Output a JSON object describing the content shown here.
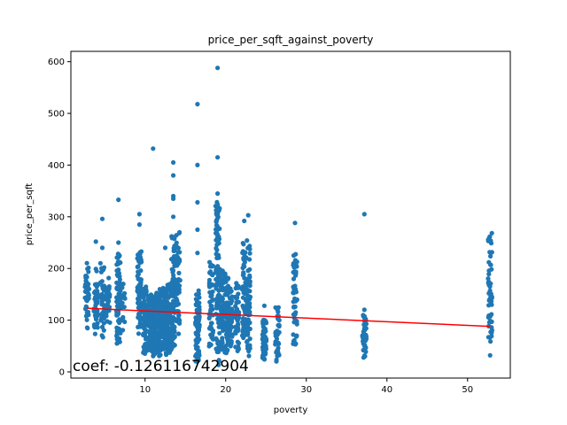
{
  "chart_data": {
    "type": "scatter",
    "title": "price_per_sqft_against_poverty",
    "xlabel": "poverty",
    "ylabel": "price_per_sqft",
    "xlim": [
      0.8,
      55.3
    ],
    "ylim": [
      -12,
      620
    ],
    "xticks": [
      10,
      20,
      30,
      40,
      50
    ],
    "yticks": [
      0,
      100,
      200,
      300,
      400,
      500,
      600
    ],
    "grid": false,
    "legend": "none",
    "point_color": "#1f77b4",
    "line_color": "#ff0000",
    "clusters": [
      {
        "x": 2.8,
        "ymin": 82,
        "ymax": 215,
        "n": 45,
        "outliers": []
      },
      {
        "x": 3.9,
        "ymin": 72,
        "ymax": 200,
        "n": 40,
        "outliers": [
          252
        ]
      },
      {
        "x": 4.7,
        "ymin": 62,
        "ymax": 215,
        "n": 40,
        "outliers": [
          296,
          240
        ]
      },
      {
        "x": 5.4,
        "ymin": 90,
        "ymax": 185,
        "n": 30,
        "outliers": []
      },
      {
        "x": 6.7,
        "ymin": 52,
        "ymax": 230,
        "n": 70,
        "outliers": [
          333,
          250
        ]
      },
      {
        "x": 7.3,
        "ymin": 80,
        "ymax": 175,
        "n": 20,
        "outliers": []
      },
      {
        "x": 9.3,
        "ymin": 72,
        "ymax": 235,
        "n": 70,
        "outliers": [
          305,
          285
        ]
      },
      {
        "x": 10.0,
        "ymin": 35,
        "ymax": 170,
        "n": 80,
        "outliers": []
      },
      {
        "x": 10.6,
        "ymin": 40,
        "ymax": 150,
        "n": 80,
        "outliers": []
      },
      {
        "x": 11.0,
        "ymin": 30,
        "ymax": 150,
        "n": 90,
        "outliers": [
          432
        ]
      },
      {
        "x": 11.5,
        "ymin": 35,
        "ymax": 155,
        "n": 90,
        "outliers": []
      },
      {
        "x": 12.0,
        "ymin": 30,
        "ymax": 160,
        "n": 90,
        "outliers": []
      },
      {
        "x": 12.5,
        "ymin": 25,
        "ymax": 165,
        "n": 80,
        "outliers": [
          240
        ]
      },
      {
        "x": 13.0,
        "ymin": 35,
        "ymax": 175,
        "n": 70,
        "outliers": []
      },
      {
        "x": 13.5,
        "ymin": 45,
        "ymax": 265,
        "n": 90,
        "outliers": [
          405,
          380,
          340,
          335,
          300
        ]
      },
      {
        "x": 14.1,
        "ymin": 70,
        "ymax": 275,
        "n": 50,
        "outliers": []
      },
      {
        "x": 16.5,
        "ymin": 20,
        "ymax": 160,
        "n": 70,
        "outliers": [
          518,
          400,
          328,
          275,
          230
        ]
      },
      {
        "x": 18.2,
        "ymin": 35,
        "ymax": 215,
        "n": 50,
        "outliers": []
      },
      {
        "x": 19.0,
        "ymin": 10,
        "ymax": 330,
        "n": 110,
        "outliers": [
          588,
          415,
          345
        ]
      },
      {
        "x": 19.5,
        "ymin": 40,
        "ymax": 200,
        "n": 70,
        "outliers": []
      },
      {
        "x": 20.1,
        "ymin": 35,
        "ymax": 190,
        "n": 90,
        "outliers": []
      },
      {
        "x": 20.6,
        "ymin": 45,
        "ymax": 165,
        "n": 50,
        "outliers": []
      },
      {
        "x": 21.4,
        "ymin": 40,
        "ymax": 175,
        "n": 50,
        "outliers": []
      },
      {
        "x": 22.3,
        "ymin": 55,
        "ymax": 255,
        "n": 60,
        "outliers": [
          292
        ]
      },
      {
        "x": 22.8,
        "ymin": 30,
        "ymax": 255,
        "n": 70,
        "outliers": [
          303
        ]
      },
      {
        "x": 24.8,
        "ymin": 15,
        "ymax": 105,
        "n": 45,
        "outliers": [
          128
        ]
      },
      {
        "x": 26.4,
        "ymin": 20,
        "ymax": 125,
        "n": 40,
        "outliers": []
      },
      {
        "x": 28.6,
        "ymin": 40,
        "ymax": 235,
        "n": 55,
        "outliers": [
          288
        ]
      },
      {
        "x": 37.2,
        "ymin": 25,
        "ymax": 110,
        "n": 45,
        "outliers": [
          305,
          120
        ]
      },
      {
        "x": 52.8,
        "ymin": 55,
        "ymax": 275,
        "n": 55,
        "outliers": [
          32
        ]
      }
    ],
    "regression_line": {
      "x": [
        2.8,
        52.8
      ],
      "y": [
        123,
        88
      ]
    },
    "annotation": "coef: -0.126116742904"
  }
}
